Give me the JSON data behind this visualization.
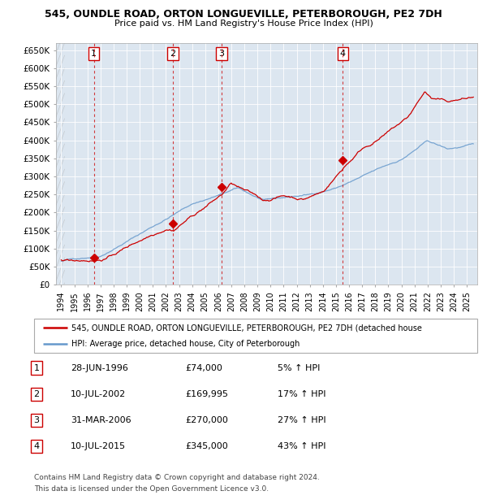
{
  "title1": "545, OUNDLE ROAD, ORTON LONGUEVILLE, PETERBOROUGH, PE2 7DH",
  "title2": "Price paid vs. HM Land Registry's House Price Index (HPI)",
  "legend_line1": "545, OUNDLE ROAD, ORTON LONGUEVILLE, PETERBOROUGH, PE2 7DH (detached house",
  "legend_line2": "HPI: Average price, detached house, City of Peterborough",
  "footer1": "Contains HM Land Registry data © Crown copyright and database right 2024.",
  "footer2": "This data is licensed under the Open Government Licence v3.0.",
  "sale_color": "#cc0000",
  "hpi_color": "#6699cc",
  "plot_bg": "#dce6f0",
  "ylim": [
    0,
    670000
  ],
  "yticks": [
    0,
    50000,
    100000,
    150000,
    200000,
    250000,
    300000,
    350000,
    400000,
    450000,
    500000,
    550000,
    600000,
    650000
  ],
  "ytick_labels": [
    "£0",
    "£50K",
    "£100K",
    "£150K",
    "£200K",
    "£250K",
    "£300K",
    "£350K",
    "£400K",
    "£450K",
    "£500K",
    "£550K",
    "£600K",
    "£650K"
  ],
  "transactions": [
    {
      "num": 1,
      "date": "28-JUN-1996",
      "price": 74000,
      "pct": "5%",
      "year_x": 1996.49
    },
    {
      "num": 2,
      "date": "10-JUL-2002",
      "price": 169995,
      "pct": "17%",
      "year_x": 2002.53
    },
    {
      "num": 3,
      "date": "31-MAR-2006",
      "price": 270000,
      "pct": "27%",
      "year_x": 2006.25
    },
    {
      "num": 4,
      "date": "10-JUL-2015",
      "price": 345000,
      "pct": "43%",
      "year_x": 2015.53
    }
  ],
  "table_rows": [
    {
      "num": 1,
      "date": "28-JUN-1996",
      "price": "£74,000",
      "pct": "5% ↑ HPI"
    },
    {
      "num": 2,
      "date": "10-JUL-2002",
      "price": "£169,995",
      "pct": "17% ↑ HPI"
    },
    {
      "num": 3,
      "date": "31-MAR-2006",
      "price": "£270,000",
      "pct": "27% ↑ HPI"
    },
    {
      "num": 4,
      "date": "10-JUL-2015",
      "price": "£345,000",
      "pct": "43% ↑ HPI"
    }
  ],
  "xmin": 1993.6,
  "xmax": 2025.8
}
